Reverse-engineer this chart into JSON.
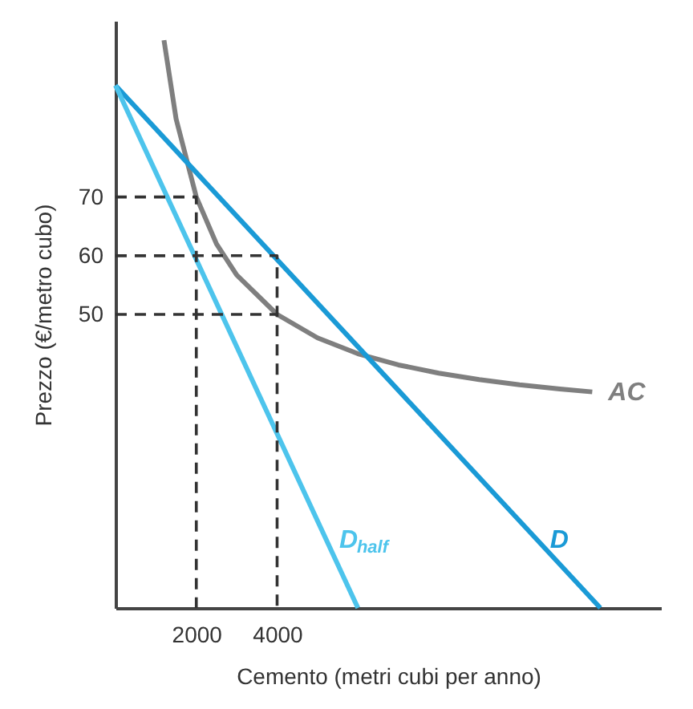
{
  "chart_data": {
    "type": "line",
    "xlabel": "Cemento (metri cubi per anno)",
    "ylabel": "Prezzo (€/metro cubo)",
    "xlim": [
      0,
      13500
    ],
    "ylim": [
      0,
      100
    ],
    "xticks": [
      2000,
      4000
    ],
    "yticks": [
      50,
      60,
      70
    ],
    "grid": false,
    "marker": "none",
    "series": [
      {
        "name": "AC",
        "color": "#7f7f7f",
        "x": [
          1200,
          1500,
          2000,
          2500,
          3000,
          4000,
          5000,
          6000,
          7000,
          8000,
          9000,
          10000,
          11000,
          11800
        ],
        "values": [
          96.7,
          83.3,
          70,
          62,
          56.7,
          50,
          46,
          43.3,
          41.4,
          40,
          38.9,
          38,
          37.3,
          36.8
        ]
      },
      {
        "name": "D",
        "color": "#1a9ad6",
        "x": [
          0,
          12000
        ],
        "values": [
          89,
          0
        ]
      },
      {
        "name": "D$_{half}$",
        "color": "#4dc4ec",
        "x": [
          0,
          6000
        ],
        "values": [
          89,
          0
        ]
      },
      {
        "color": "#333333",
        "line_style": "dashed",
        "x": [
          0,
          2000,
          2000
        ],
        "values": [
          70,
          70,
          0
        ]
      },
      {
        "color": "#333333",
        "line_style": "dashed",
        "x": [
          0,
          4000,
          4000
        ],
        "values": [
          60,
          60,
          0
        ]
      },
      {
        "color": "#333333",
        "line_style": "dashed",
        "x": [
          0,
          2000
        ],
        "values": [
          60,
          60
        ]
      },
      {
        "color": "#333333",
        "line_style": "dashed",
        "x": [
          0,
          4000
        ],
        "values": [
          50,
          50
        ]
      }
    ]
  }
}
